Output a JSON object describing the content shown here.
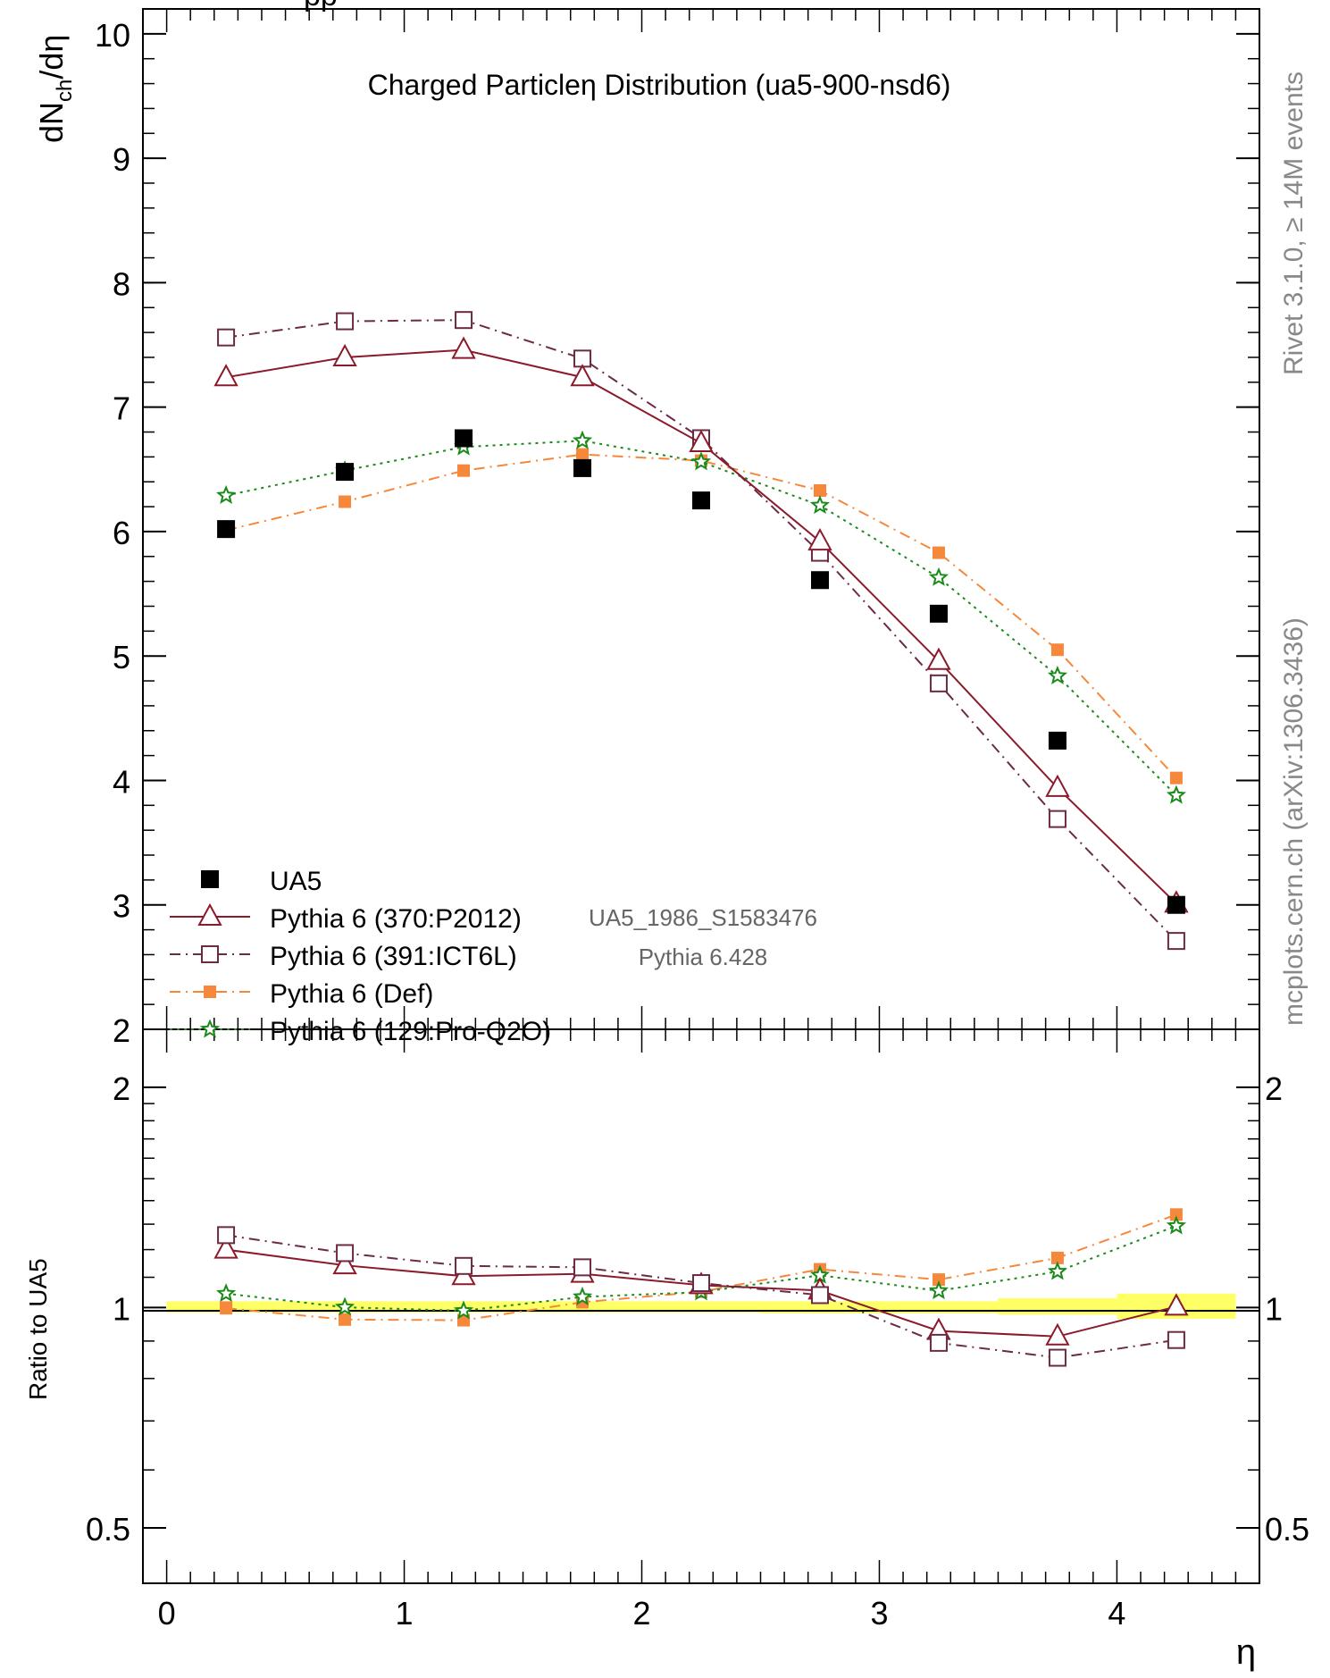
{
  "header_partial": "pp",
  "chart_data": [
    {
      "type": "line",
      "title": "Charged Particleη Distribution (ua5-900-nsd6)",
      "ylabel_main": "dN",
      "ylabel_sub": "ch",
      "ylabel_tail": "/dη",
      "ylim": [
        2,
        10.2
      ],
      "yticks": [
        2,
        3,
        4,
        5,
        6,
        7,
        8,
        9,
        10
      ],
      "ytick_labels": [
        "2",
        "3",
        "4",
        "5",
        "6",
        "7",
        "8",
        "9",
        "10"
      ],
      "xlim": [
        -0.1,
        4.6
      ],
      "x": [
        0.25,
        0.75,
        1.25,
        1.75,
        2.25,
        2.75,
        3.25,
        3.75,
        4.25
      ],
      "series": [
        {
          "name": "UA5",
          "color": "#000000",
          "marker": "filled-square",
          "line": "none",
          "values": [
            6.02,
            6.48,
            6.75,
            6.51,
            6.25,
            5.61,
            5.34,
            4.32,
            3.0
          ]
        },
        {
          "name": "Pythia 6 (370:P2012)",
          "color": "#8b1a2b",
          "marker": "open-triangle",
          "line": "solid",
          "values": [
            7.24,
            7.4,
            7.46,
            7.24,
            6.71,
            5.92,
            4.96,
            3.94,
            3.01
          ]
        },
        {
          "name": "Pythia 6 (391:ICT6L)",
          "color": "#6b2b45",
          "marker": "open-square",
          "line": "dash-dot",
          "values": [
            7.56,
            7.69,
            7.7,
            7.39,
            6.75,
            5.83,
            4.78,
            3.69,
            2.71
          ]
        },
        {
          "name": "Pythia 6 (Def)",
          "color": "#f5883a",
          "marker": "small-square",
          "line": "dash-dot-orange",
          "values": [
            6.01,
            6.24,
            6.49,
            6.62,
            6.57,
            6.33,
            5.83,
            5.05,
            4.02
          ]
        },
        {
          "name": "Pythia 6 (129:Pro-Q2O)",
          "color": "#1a8a1a",
          "marker": "open-star",
          "line": "dotted",
          "values": [
            6.29,
            6.49,
            6.68,
            6.73,
            6.56,
            6.21,
            5.63,
            4.84,
            3.88
          ]
        }
      ],
      "annotations": [
        "UA5_1986_S1583476",
        "Pythia 6.428"
      ]
    },
    {
      "type": "line",
      "ylabel": "Ratio to UA5",
      "xlabel": "η",
      "ylim": [
        0.42,
        2.4
      ],
      "log_y": true,
      "ytick_labels": [
        "0.5",
        "1",
        "2"
      ],
      "yticks": [
        0.5,
        1,
        2
      ],
      "xticks": [
        0,
        1,
        2,
        3,
        4
      ],
      "xtick_labels": [
        "0",
        "1",
        "2",
        "3",
        "4"
      ],
      "x": [
        0.25,
        0.75,
        1.25,
        1.75,
        2.25,
        2.75,
        3.25,
        3.75,
        4.25
      ],
      "band": {
        "color": "#ffff66",
        "segments": [
          {
            "x0": 0.0,
            "x1": 2.5,
            "lo": 0.985,
            "hi": 1.02
          },
          {
            "x0": 2.5,
            "x1": 3.5,
            "lo": 0.982,
            "hi": 1.02
          },
          {
            "x0": 3.5,
            "x1": 4.0,
            "lo": 0.978,
            "hi": 1.03
          },
          {
            "x0": 4.0,
            "x1": 4.5,
            "lo": 0.965,
            "hi": 1.045
          }
        ]
      },
      "series": [
        {
          "name": "Pythia 6 (370:P2012)",
          "values": [
            1.2,
            1.142,
            1.104,
            1.112,
            1.073,
            1.055,
            0.929,
            0.913,
            1.003
          ]
        },
        {
          "name": "Pythia 6 (391:ICT6L)",
          "values": [
            1.256,
            1.187,
            1.14,
            1.135,
            1.08,
            1.04,
            0.895,
            0.854,
            0.903
          ]
        },
        {
          "name": "Pythia 6 (Def)",
          "values": [
            0.998,
            0.963,
            0.961,
            1.017,
            1.051,
            1.128,
            1.092,
            1.169,
            1.34
          ]
        },
        {
          "name": "Pythia 6 (129:Pro-Q2O)",
          "values": [
            1.045,
            1.001,
            0.99,
            1.034,
            1.05,
            1.107,
            1.054,
            1.12,
            1.293
          ]
        }
      ]
    }
  ],
  "side_labels": {
    "right_top": "Rivet 3.1.0, ≥ 14M events",
    "right_bottom": "mcplots.cern.ch (arXiv:1306.3436)"
  }
}
